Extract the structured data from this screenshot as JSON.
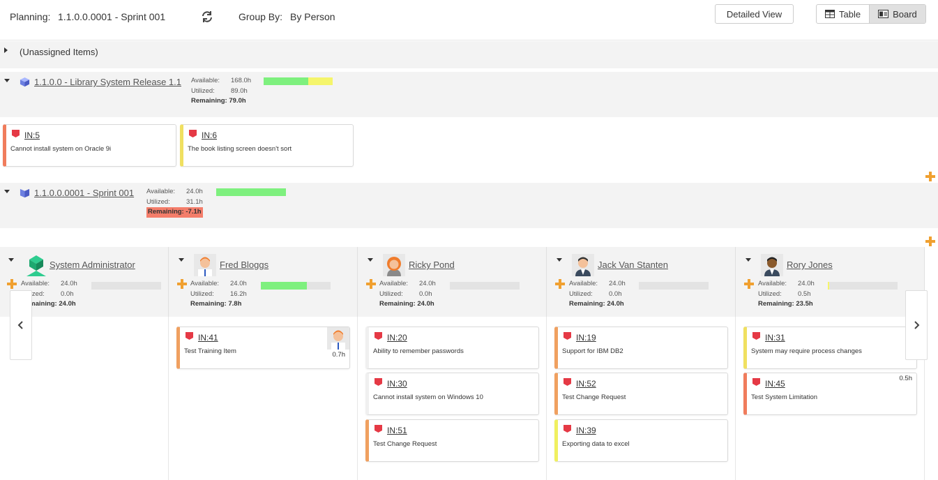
{
  "toolbar": {
    "planning_label": "Planning:",
    "planning_value": "1.1.0.0.0001 - Sprint 001",
    "refresh_icon": "refresh-icon",
    "groupby_label": "Group By:",
    "groupby_value": "By Person",
    "detailed_view": "Detailed View",
    "table_label": "Table",
    "board_label": "Board",
    "active_view": "Board"
  },
  "unassigned": {
    "label": "(Unassigned Items)"
  },
  "release": {
    "title": "1.1.0.0 - Library System Release 1.1",
    "available_label": "Available:",
    "available": "168.0h",
    "utilized_label": "Utilized:",
    "utilized": "89.0h",
    "remaining_label": "Remaining:",
    "remaining": "79.0h",
    "progress": {
      "green": 0.65,
      "yellow": 0.35
    },
    "cards": [
      {
        "id": "IN:5",
        "title": "Cannot install system on Oracle 9i",
        "color": "#f07c5c"
      },
      {
        "id": "IN:6",
        "title": "The book listing screen doesn't sort",
        "color": "#f0e060"
      }
    ]
  },
  "sprint": {
    "title": "1.1.0.0.0001 - Sprint 001",
    "available_label": "Available:",
    "available": "24.0h",
    "utilized_label": "Utilized:",
    "utilized": "31.1h",
    "remaining_label": "Remaining:",
    "remaining": "-7.1h",
    "progress": {
      "green": 1.0
    }
  },
  "people": [
    {
      "name": "System Administrator",
      "avatar": "admin-avatar",
      "available_label": "Available:",
      "available": "24.0h",
      "utilized_label": "Utilized:",
      "utilized": "0.0h",
      "remaining_label": "Remaining:",
      "remaining": "24.0h",
      "progress": 0.0,
      "cards": []
    },
    {
      "name": "Fred Bloggs",
      "avatar": "fred-avatar",
      "available_label": "Available:",
      "available": "24.0h",
      "utilized_label": "Utilized:",
      "utilized": "16.2h",
      "remaining_label": "Remaining:",
      "remaining": "7.8h",
      "progress": 0.66,
      "cards": [
        {
          "id": "IN:41",
          "title": "Test Training Item",
          "hours": "0.7h",
          "color": "#f0a060"
        }
      ]
    },
    {
      "name": "Ricky Pond",
      "avatar": "ricky-avatar",
      "available_label": "Available:",
      "available": "24.0h",
      "utilized_label": "Utilized:",
      "utilized": "0.0h",
      "remaining_label": "Remaining:",
      "remaining": "24.0h",
      "progress": 0.0,
      "cards": [
        {
          "id": "IN:20",
          "title": "Ability to remember passwords",
          "color": "#f0f0f0"
        },
        {
          "id": "IN:30",
          "title": "Cannot install system on Windows 10",
          "color": "#f0f0f0"
        },
        {
          "id": "IN:51",
          "title": "Test Change Request",
          "color": "#f0a060"
        }
      ]
    },
    {
      "name": "Jack Van Stanten",
      "avatar": "jack-avatar",
      "available_label": "Available:",
      "available": "24.0h",
      "utilized_label": "Utilized:",
      "utilized": "0.0h",
      "remaining_label": "Remaining:",
      "remaining": "24.0h",
      "progress": 0.0,
      "cards": [
        {
          "id": "IN:19",
          "title": "Support for IBM DB2",
          "color": "#f0a060"
        },
        {
          "id": "IN:52",
          "title": "Test Change Request",
          "color": "#f0a060"
        },
        {
          "id": "IN:39",
          "title": "Exporting data to excel",
          "color": "#f0f060"
        }
      ]
    },
    {
      "name": "Rory Jones",
      "avatar": "rory-avatar",
      "available_label": "Available:",
      "available": "24.0h",
      "utilized_label": "Utilized:",
      "utilized": "0.5h",
      "remaining_label": "Remaining:",
      "remaining": "23.5h",
      "progress": 0.02,
      "cards": [
        {
          "id": "IN:31",
          "title": "System may require process changes",
          "color": "#f0e060"
        },
        {
          "id": "IN:45",
          "title": "Test System Limitation",
          "hours": "0.5h",
          "color": "#f07c5c"
        }
      ]
    }
  ]
}
